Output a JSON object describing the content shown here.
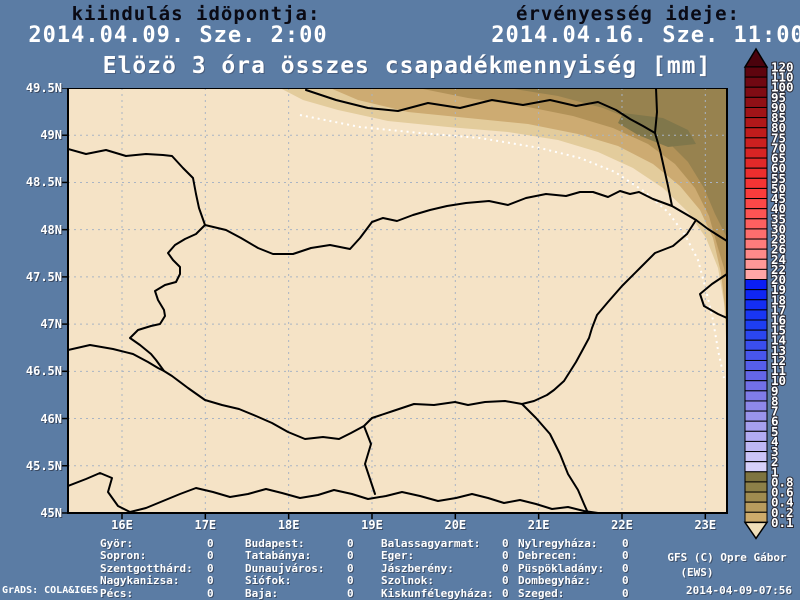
{
  "header": {
    "init_label": "kiindulás idöpontja:",
    "init_value": "2014.04.09. Sze. 2:00",
    "valid_label": "érvényesség ideje:",
    "valid_value": "2014.04.16. Sze. 11:00"
  },
  "title": "Elözö 3 óra összes csapadékmennyiség [mm]",
  "map": {
    "lat_labels": [
      "49.5N",
      "49N",
      "48.5N",
      "48N",
      "47.5N",
      "47N",
      "46.5N",
      "46N",
      "45.5N",
      "45N"
    ],
    "lon_labels": [
      "16E",
      "17E",
      "18E",
      "19E",
      "20E",
      "21E",
      "22E",
      "23E"
    ]
  },
  "colorbar": {
    "unit": "mm",
    "labels": [
      "120",
      "110",
      "100",
      "95",
      "90",
      "85",
      "80",
      "75",
      "70",
      "65",
      "60",
      "55",
      "50",
      "45",
      "40",
      "35",
      "30",
      "28",
      "26",
      "24",
      "22",
      "20",
      "19",
      "18",
      "17",
      "16",
      "15",
      "14",
      "13",
      "12",
      "11",
      "10",
      "9",
      "8",
      "7",
      "6",
      "5",
      "4",
      "3",
      "2",
      "1",
      "0.8",
      "0.6",
      "0.4",
      "0.2",
      "0.1"
    ],
    "cell_colors": [
      "#5e040e",
      "#700812",
      "#800c14",
      "#901016",
      "#a01418",
      "#b0181a",
      "#c01c1c",
      "#cc2020",
      "#d82424",
      "#e22929",
      "#ec2e2e",
      "#f43434",
      "#fa3c3c",
      "#fc4848",
      "#fd5454",
      "#fd6060",
      "#fe6e6e",
      "#fe7c7c",
      "#fe8a8a",
      "#ff9898",
      "#ffa6a6",
      "#0a1ef4",
      "#0f26f4",
      "#142ef4",
      "#1936f4",
      "#1e3ef2",
      "#2b46f0",
      "#3a4eee",
      "#4856ec",
      "#565eea",
      "#6466e8",
      "#7270e8",
      "#807ce8",
      "#8e88ea",
      "#9a94ec",
      "#a6a0ee",
      "#b2acf2",
      "#beb8f4",
      "#cac4f8",
      "#d6d0fa",
      "#7e7440",
      "#8d8048",
      "#a08c50",
      "#b89c5e",
      "#cdab6b"
    ],
    "top_arrow_color": "#4a020c",
    "bottom_arrow_color": "#f0dfba"
  },
  "stations": {
    "columns": [
      [
        {
          "name": "Györ:",
          "value": "0"
        },
        {
          "name": "Sopron:",
          "value": "0"
        },
        {
          "name": "Szentgotthárd:",
          "value": "0"
        },
        {
          "name": "Nagykanizsa:",
          "value": "0"
        },
        {
          "name": "Pécs:",
          "value": "0"
        }
      ],
      [
        {
          "name": "Budapest:",
          "value": "0"
        },
        {
          "name": "Tatabánya:",
          "value": "0"
        },
        {
          "name": "Dunaujváros:",
          "value": "0"
        },
        {
          "name": "Siófok:",
          "value": "0"
        },
        {
          "name": "Baja:",
          "value": "0"
        }
      ],
      [
        {
          "name": "Balassagyarmat:",
          "value": "0"
        },
        {
          "name": "Eger:",
          "value": "0"
        },
        {
          "name": "Jászberény:",
          "value": "0"
        },
        {
          "name": "Szolnok:",
          "value": "0"
        },
        {
          "name": "Kiskunfélegyháza:",
          "value": "0"
        }
      ],
      [
        {
          "name": "Nylregyháza:",
          "value": "0"
        },
        {
          "name": "Debrecen:",
          "value": "0"
        },
        {
          "name": "Püspökladány:",
          "value": "0"
        },
        {
          "name": "Dombegyház:",
          "value": "0"
        },
        {
          "name": "Szeged:",
          "value": "0"
        }
      ]
    ]
  },
  "credits": {
    "model": "GFS (C) Opre Gábor",
    "org": "(EWS)",
    "run": "2014-04-09-07:56",
    "grads": "GrADS: COLA&IGES"
  },
  "colors": {
    "background": "#5b7ca4",
    "map_base": "#f5e3c6",
    "band_01_02": "#e3cc9c",
    "band_02_04": "#cdab72",
    "band_04_06": "#b29258",
    "band_06_08": "#97824f",
    "band_max": "#80774b",
    "grid": "#a9b4c4",
    "border": "#000000",
    "contour": "#ffffff"
  }
}
